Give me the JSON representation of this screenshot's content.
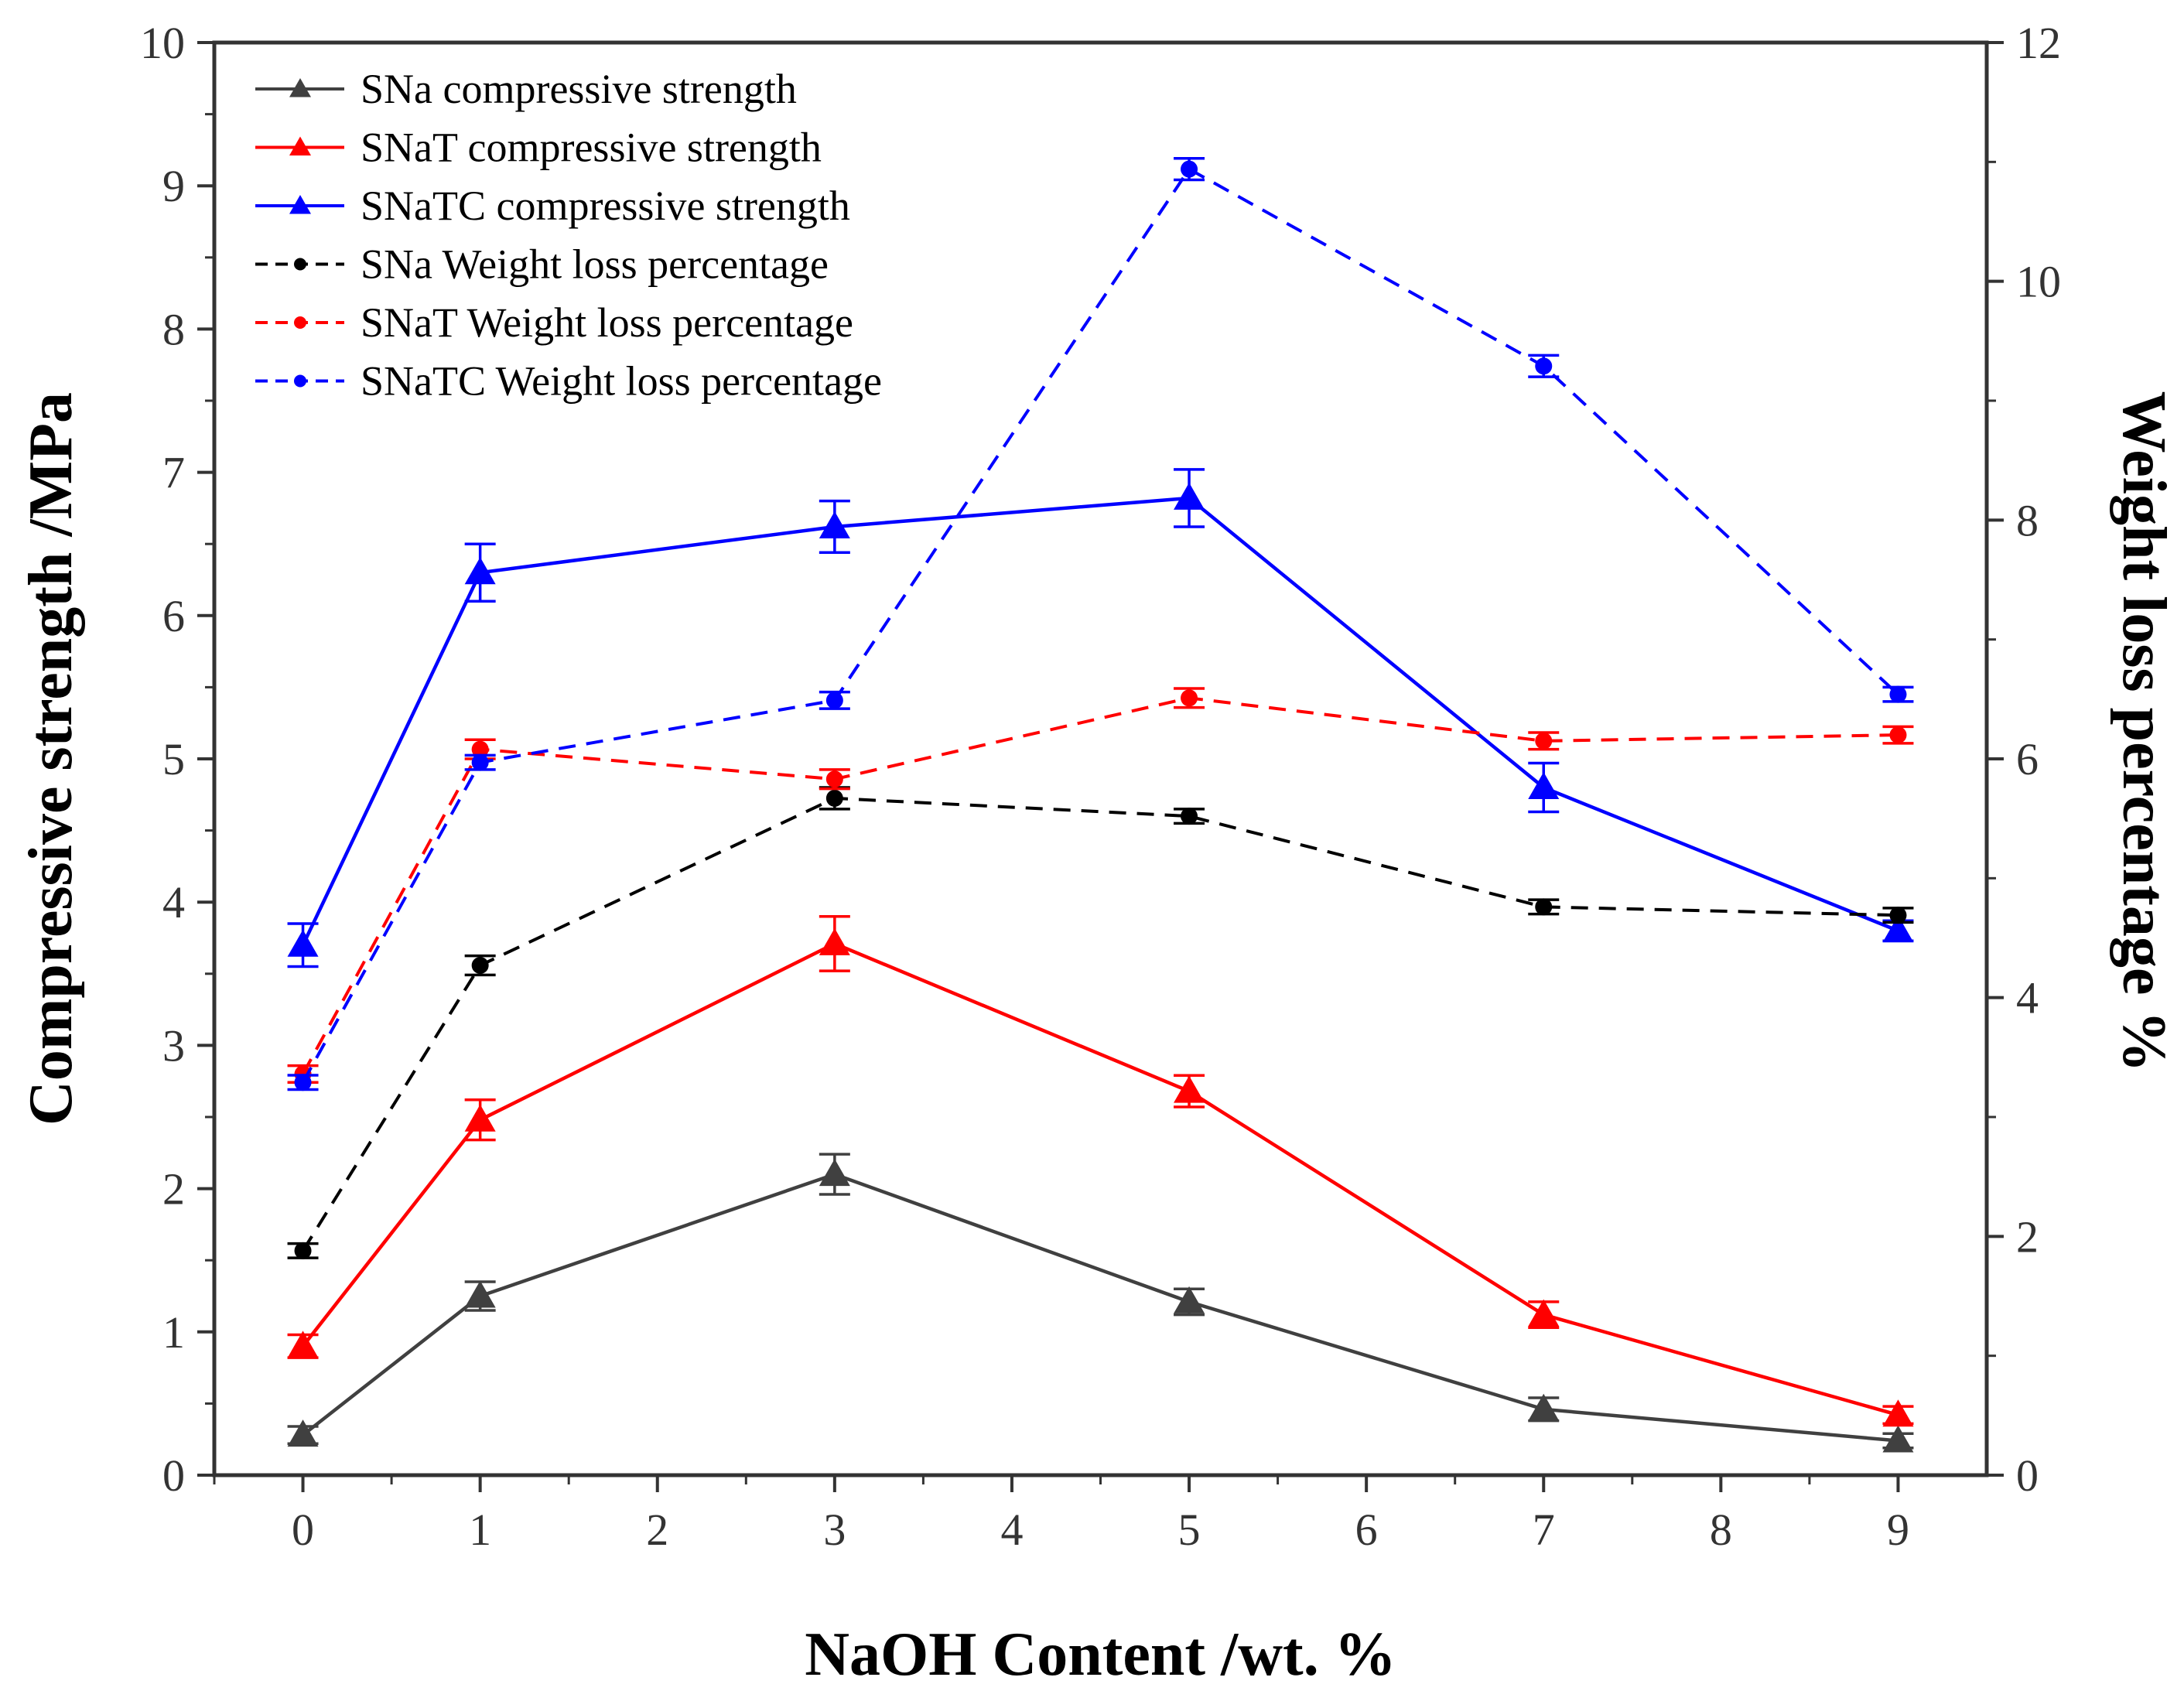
{
  "chart_data": {
    "type": "line",
    "title": "",
    "xlabel": "NaOH Content /wt. %",
    "ylabel_left": "Compressive strength /MPa",
    "ylabel_right": "Weight loss percentage %",
    "x": [
      0,
      1,
      3,
      5,
      7,
      9
    ],
    "xlim": [
      -0.5,
      9.5
    ],
    "ylim_left": [
      0,
      10
    ],
    "ylim_right": [
      0,
      12
    ],
    "xticks": [
      "0",
      "1",
      "2",
      "3",
      "4",
      "5",
      "6",
      "7",
      "8",
      "9"
    ],
    "yticks_left": [
      "0",
      "1",
      "2",
      "3",
      "4",
      "5",
      "6",
      "7",
      "8",
      "9",
      "10"
    ],
    "yticks_right": [
      "0",
      "2",
      "4",
      "6",
      "8",
      "10",
      "12"
    ],
    "grid": false,
    "legend_position": "top-left",
    "series": [
      {
        "name": "SNa compressive strength",
        "axis": "left",
        "color": "#404040",
        "dash": "solid",
        "marker": "triangle",
        "values": [
          0.28,
          1.25,
          2.1,
          1.21,
          0.46,
          0.24
        ],
        "errors": [
          0.06,
          0.1,
          0.14,
          0.09,
          0.08,
          0.05
        ]
      },
      {
        "name": "SNaT compressive strength",
        "axis": "left",
        "color": "#ff0000",
        "dash": "solid",
        "marker": "triangle",
        "values": [
          0.9,
          2.48,
          3.71,
          2.68,
          1.12,
          0.42
        ],
        "errors": [
          0.08,
          0.14,
          0.19,
          0.11,
          0.09,
          0.06
        ]
      },
      {
        "name": "SNaTC compressive strength",
        "axis": "left",
        "color": "#0000ff",
        "dash": "solid",
        "marker": "triangle",
        "values": [
          3.7,
          6.3,
          6.62,
          6.82,
          4.8,
          3.8
        ],
        "errors": [
          0.15,
          0.2,
          0.18,
          0.2,
          0.17,
          0.07
        ]
      },
      {
        "name": "SNa Weight loss percentage",
        "axis": "right",
        "color": "#000000",
        "dash": "dashed",
        "marker": "circle",
        "values": [
          1.88,
          4.27,
          5.67,
          5.52,
          4.76,
          4.69
        ],
        "errors": [
          0.06,
          0.08,
          0.09,
          0.06,
          0.06,
          0.06
        ]
      },
      {
        "name": "SNaT Weight loss percentage",
        "axis": "right",
        "color": "#ff0000",
        "dash": "dashed",
        "marker": "circle",
        "values": [
          3.36,
          6.08,
          5.83,
          6.51,
          6.15,
          6.2
        ],
        "errors": [
          0.07,
          0.08,
          0.08,
          0.08,
          0.07,
          0.07
        ]
      },
      {
        "name": "SNaTC Weight loss percentage",
        "axis": "right",
        "color": "#0000ff",
        "dash": "dashed",
        "marker": "circle",
        "values": [
          3.29,
          5.97,
          6.49,
          10.94,
          9.29,
          6.54
        ],
        "errors": [
          0.06,
          0.06,
          0.07,
          0.09,
          0.09,
          0.06
        ]
      }
    ]
  }
}
